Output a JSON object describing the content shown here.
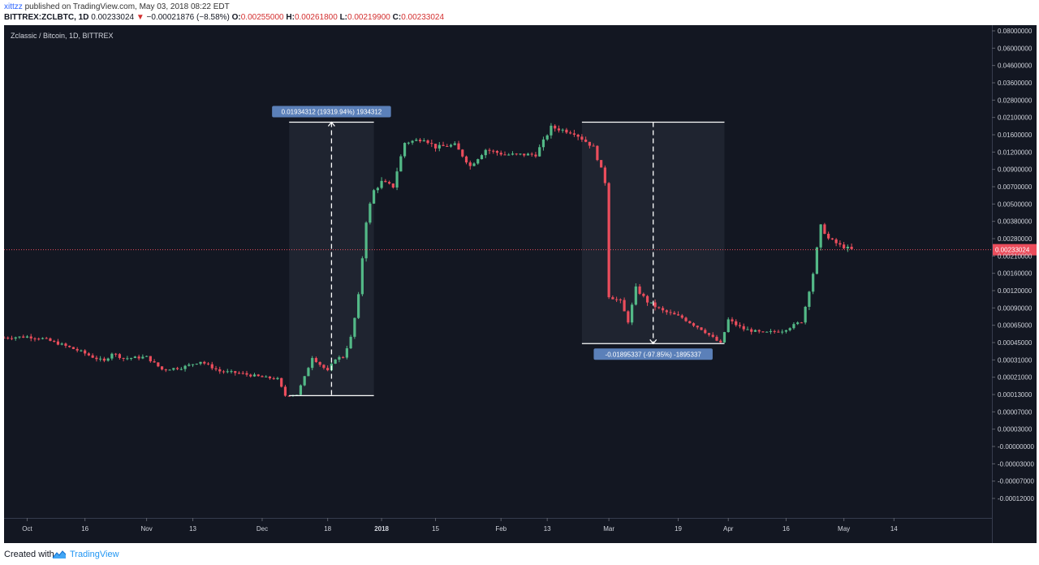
{
  "header": {
    "author": "xittzz",
    "published": "published on TradingView.com, May 03, 2018 08:22 EDT",
    "symbol": "BITTREX:ZCLBTC, 1D",
    "last": "0.00233024",
    "arrow": "▼",
    "change": "−0.00021876 (−8.58%)",
    "o_label": "O:",
    "o": "0.00255000",
    "h_label": "H:",
    "h": "0.00261800",
    "l_label": "L:",
    "l": "0.00219900",
    "c_label": "C:",
    "c": "0.00233024"
  },
  "footer": {
    "created": "Created with",
    "brand": "TradingView"
  },
  "colors": {
    "background": "#131722",
    "up": "#53b987",
    "down": "#eb4d5c",
    "axis_bg": "#131722",
    "grid": "#1e2230",
    "price_line": "#eb4d5c",
    "label_bg": "#5b80b9"
  },
  "chart_data": {
    "type": "candlestick",
    "title": "Zclassic / Bitcoin, 1D, BITTREX",
    "log_scale": true,
    "grid": false,
    "y_ticks": [
      "0.08000000",
      "0.06000000",
      "0.04600000",
      "0.03600000",
      "0.02800000",
      "0.02100000",
      "0.01600000",
      "0.01200000",
      "0.00900000",
      "0.00700000",
      "0.00500000",
      "0.00380000",
      "0.00280000",
      "0.00210000",
      "0.00160000",
      "0.00120000",
      "0.00090000",
      "0.00065000",
      "0.00045000",
      "0.00031000",
      "0.00021000",
      "0.00013000",
      "0.00007000",
      "0.00003000",
      "-0.00000000",
      "-0.00003000",
      "-0.00007000",
      "-0.00012000"
    ],
    "x_ticks": [
      {
        "label": "Oct",
        "date": "2017-10-01"
      },
      {
        "label": "16",
        "date": "2017-10-16"
      },
      {
        "label": "Nov",
        "date": "2017-11-01"
      },
      {
        "label": "13",
        "date": "2017-11-13"
      },
      {
        "label": "Dec",
        "date": "2017-12-01"
      },
      {
        "label": "18",
        "date": "2017-12-18"
      },
      {
        "label": "2018",
        "date": "2018-01-01"
      },
      {
        "label": "15",
        "date": "2018-01-15"
      },
      {
        "label": "Feb",
        "date": "2018-02-01"
      },
      {
        "label": "13",
        "date": "2018-02-13"
      },
      {
        "label": "Mar",
        "date": "2018-03-01"
      },
      {
        "label": "19",
        "date": "2018-03-19"
      },
      {
        "label": "Apr",
        "date": "2018-04-01"
      },
      {
        "label": "16",
        "date": "2018-04-16"
      },
      {
        "label": "May",
        "date": "2018-05-01"
      },
      {
        "label": "14",
        "date": "2018-05-14"
      }
    ],
    "x_range": [
      "2017-09-25",
      "2018-05-31"
    ],
    "close_anchors": [
      [
        "2017-09-25",
        0.0005
      ],
      [
        "2017-10-01",
        0.00051
      ],
      [
        "2017-10-05",
        0.00049
      ],
      [
        "2017-10-10",
        0.00043
      ],
      [
        "2017-10-15",
        0.00037
      ],
      [
        "2017-10-18",
        0.00033
      ],
      [
        "2017-10-21",
        0.0003
      ],
      [
        "2017-10-23",
        0.00036
      ],
      [
        "2017-10-26",
        0.00032
      ],
      [
        "2017-11-01",
        0.00033
      ],
      [
        "2017-11-05",
        0.00025
      ],
      [
        "2017-11-10",
        0.00026
      ],
      [
        "2017-11-15",
        0.0003
      ],
      [
        "2017-11-20",
        0.00024
      ],
      [
        "2017-11-25",
        0.00023
      ],
      [
        "2017-12-01",
        0.00021
      ],
      [
        "2017-12-05",
        0.0002
      ],
      [
        "2017-12-07",
        0.000125
      ],
      [
        "2017-12-10",
        0.00013
      ],
      [
        "2017-12-12",
        0.00021
      ],
      [
        "2017-12-14",
        0.00033
      ],
      [
        "2017-12-16",
        0.00028
      ],
      [
        "2017-12-18",
        0.00024
      ],
      [
        "2017-12-20",
        0.00032
      ],
      [
        "2017-12-22",
        0.00033
      ],
      [
        "2017-12-24",
        0.0005
      ],
      [
        "2017-12-26",
        0.0011
      ],
      [
        "2017-12-28",
        0.0038
      ],
      [
        "2017-12-30",
        0.0065
      ],
      [
        "2018-01-01",
        0.0075
      ],
      [
        "2018-01-04",
        0.007
      ],
      [
        "2018-01-07",
        0.014
      ],
      [
        "2018-01-12",
        0.015
      ],
      [
        "2018-01-15",
        0.013
      ],
      [
        "2018-01-20",
        0.0135
      ],
      [
        "2018-01-24",
        0.0095
      ],
      [
        "2018-01-28",
        0.0125
      ],
      [
        "2018-02-02",
        0.0115
      ],
      [
        "2018-02-10",
        0.0115
      ],
      [
        "2018-02-14",
        0.018
      ],
      [
        "2018-02-20",
        0.0165
      ],
      [
        "2018-02-25",
        0.013
      ],
      [
        "2018-02-28",
        0.0075
      ],
      [
        "2018-03-01",
        0.0011
      ],
      [
        "2018-03-04",
        0.001
      ],
      [
        "2018-03-06",
        0.0007
      ],
      [
        "2018-03-08",
        0.00125
      ],
      [
        "2018-03-11",
        0.001
      ],
      [
        "2018-03-15",
        0.00085
      ],
      [
        "2018-03-20",
        0.00075
      ],
      [
        "2018-03-25",
        0.0006
      ],
      [
        "2018-03-30",
        0.00044
      ],
      [
        "2018-04-01",
        0.00072
      ],
      [
        "2018-04-05",
        0.0006
      ],
      [
        "2018-04-10",
        0.00055
      ],
      [
        "2018-04-15",
        0.00058
      ],
      [
        "2018-04-20",
        0.0007
      ],
      [
        "2018-04-23",
        0.0016
      ],
      [
        "2018-04-25",
        0.0035
      ],
      [
        "2018-04-27",
        0.0028
      ],
      [
        "2018-04-30",
        0.0025
      ],
      [
        "2018-05-03",
        0.00233
      ]
    ],
    "current_price": "0.00233024",
    "annotations": [
      {
        "type": "range",
        "label": "0.01934312 (19319.94%) 1934312",
        "from_date": "2017-12-08",
        "to_date": "2017-12-30",
        "from_price": 0.000125,
        "to_price": 0.0195,
        "direction": "up"
      },
      {
        "type": "range",
        "label": "-0.01895337 (-97.85%) -1895337",
        "from_date": "2018-02-22",
        "to_date": "2018-03-31",
        "from_price": 0.0195,
        "to_price": 0.00044,
        "direction": "down"
      }
    ]
  }
}
